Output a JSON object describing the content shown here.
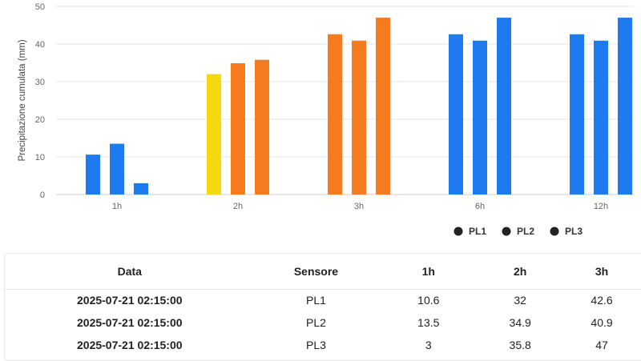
{
  "chart_data": {
    "type": "bar",
    "categories": [
      "1h",
      "2h",
      "3h",
      "6h",
      "12h"
    ],
    "series": [
      {
        "name": "PL1",
        "values": [
          10.6,
          32,
          42.6,
          42.6,
          42.6
        ]
      },
      {
        "name": "PL2",
        "values": [
          13.5,
          34.9,
          40.9,
          40.9,
          40.9
        ]
      },
      {
        "name": "PL3",
        "values": [
          3,
          35.8,
          47,
          47,
          47
        ]
      }
    ],
    "bar_colors": [
      [
        "#1E7BEF",
        "#1E7BEF",
        "#1E7BEF"
      ],
      [
        "#F5D80E",
        "#F57B1E",
        "#F57B1E"
      ],
      [
        "#F57B1E",
        "#F57B1E",
        "#F57B1E"
      ],
      [
        "#1E7BEF",
        "#1E7BEF",
        "#1E7BEF"
      ],
      [
        "#1E7BEF",
        "#1E7BEF",
        "#1E7BEF"
      ]
    ],
    "ylabel": "Precipitazione cumulata (mm)",
    "ylim": [
      0,
      50
    ],
    "yticks": [
      0,
      10,
      20,
      30,
      40,
      50
    ],
    "grid": true,
    "legend_position": "bottom-right",
    "legend_color": "#222222"
  },
  "table": {
    "headers": [
      "Data",
      "Sensore",
      "1h",
      "2h",
      "3h"
    ],
    "rows": [
      [
        "2025-07-21 02:15:00",
        "PL1",
        "10.6",
        "32",
        "42.6"
      ],
      [
        "2025-07-21 02:15:00",
        "PL2",
        "13.5",
        "34.9",
        "40.9"
      ],
      [
        "2025-07-21 02:15:00",
        "PL3",
        "3",
        "35.8",
        "47"
      ]
    ]
  }
}
